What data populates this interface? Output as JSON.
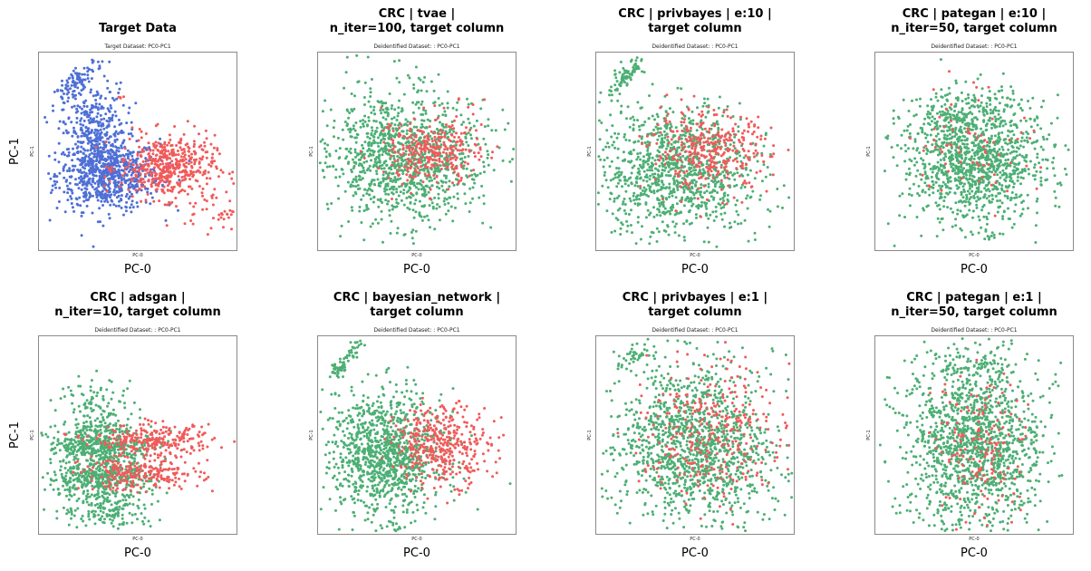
{
  "figure": {
    "row_ylabel": "PC-1"
  },
  "colors": {
    "blue": "#4e6fd6",
    "red": "#f15a5a",
    "green": "#4caf74"
  },
  "chart_data": [
    {
      "type": "scatter",
      "title_lines": [
        "Target Data"
      ],
      "subtitle": "Target Dataset: PC0-PC1",
      "xlabel": "PC-0",
      "ylabel": "PC-1",
      "inner_xlabel": "PC-0",
      "inner_ylabel": "PC-1",
      "series": [
        {
          "color": "blue",
          "clusters": [
            {
              "cx": 0.35,
              "cy": 0.38,
              "sx": 0.13,
              "sy": 0.09,
              "n": 700
            },
            {
              "cx": 0.28,
              "cy": 0.6,
              "sx": 0.08,
              "sy": 0.12,
              "n": 350
            },
            {
              "cx": 0.2,
              "cy": 0.86,
              "sx": 0.06,
              "sy": 0.03,
              "n": 90,
              "tilt": 0.8
            }
          ]
        },
        {
          "color": "red",
          "clusters": [
            {
              "cx": 0.65,
              "cy": 0.42,
              "sx": 0.12,
              "sy": 0.08,
              "n": 480
            },
            {
              "cx": 0.88,
              "cy": 0.2,
              "sx": 0.07,
              "sy": 0.05,
              "n": 40
            },
            {
              "cx": 0.42,
              "cy": 0.77,
              "sx": 0.02,
              "sy": 0.01,
              "n": 4
            }
          ]
        }
      ]
    },
    {
      "type": "scatter",
      "title_lines": [
        "CRC | tvae |",
        "n_iter=100, target column"
      ],
      "subtitle": "Deidentified Dataset: : PC0-PC1",
      "xlabel": "PC-0",
      "inner_xlabel": "PC-0",
      "inner_ylabel": "PC-1",
      "series": [
        {
          "color": "green",
          "clusters": [
            {
              "cx": 0.45,
              "cy": 0.45,
              "sx": 0.2,
              "sy": 0.16,
              "n": 1000
            },
            {
              "cx": 0.3,
              "cy": 0.6,
              "sx": 0.1,
              "sy": 0.15,
              "n": 120
            }
          ]
        },
        {
          "color": "red",
          "clusters": [
            {
              "cx": 0.58,
              "cy": 0.5,
              "sx": 0.13,
              "sy": 0.09,
              "n": 320
            }
          ]
        }
      ]
    },
    {
      "type": "scatter",
      "title_lines": [
        "CRC | privbayes | e:10 |",
        "target column"
      ],
      "subtitle": "Deidentified Dataset: : PC0-PC1",
      "xlabel": "PC-0",
      "inner_xlabel": "PC-0",
      "inner_ylabel": "PC-1",
      "series": [
        {
          "color": "green",
          "clusters": [
            {
              "cx": 0.4,
              "cy": 0.4,
              "sx": 0.2,
              "sy": 0.16,
              "n": 1050
            },
            {
              "cx": 0.15,
              "cy": 0.88,
              "sx": 0.06,
              "sy": 0.03,
              "n": 90,
              "tilt": 0.7
            }
          ]
        },
        {
          "color": "red",
          "clusters": [
            {
              "cx": 0.58,
              "cy": 0.5,
              "sx": 0.15,
              "sy": 0.1,
              "n": 360
            }
          ]
        }
      ]
    },
    {
      "type": "scatter",
      "title_lines": [
        "CRC | pategan | e:10 |",
        "n_iter=50, target column"
      ],
      "subtitle": "Deidentified Dataset: : PC0-PC1",
      "xlabel": "PC-0",
      "inner_xlabel": "PC-0",
      "inner_ylabel": "PC-1",
      "series": [
        {
          "color": "green",
          "clusters": [
            {
              "cx": 0.5,
              "cy": 0.45,
              "sx": 0.18,
              "sy": 0.16,
              "n": 1200
            },
            {
              "cx": 0.45,
              "cy": 0.7,
              "sx": 0.14,
              "sy": 0.05,
              "n": 120
            }
          ]
        },
        {
          "color": "red",
          "clusters": [
            {
              "cx": 0.5,
              "cy": 0.55,
              "sx": 0.15,
              "sy": 0.15,
              "n": 70
            }
          ]
        }
      ]
    },
    {
      "type": "scatter",
      "title_lines": [
        "CRC | adsgan |",
        "n_iter=10, target column"
      ],
      "subtitle": "Deidentified Dataset: : PC0-PC1",
      "xlabel": "PC-0",
      "ylabel": "PC-1",
      "inner_xlabel": "PC-0",
      "inner_ylabel": "PC-1",
      "series": [
        {
          "color": "green",
          "clusters": [
            {
              "cx": 0.32,
              "cy": 0.45,
              "sx": 0.14,
              "sy": 0.05,
              "n": 420
            },
            {
              "cx": 0.3,
              "cy": 0.28,
              "sx": 0.13,
              "sy": 0.05,
              "n": 420
            },
            {
              "cx": 0.3,
              "cy": 0.6,
              "sx": 0.1,
              "sy": 0.1,
              "n": 160
            },
            {
              "cx": 0.35,
              "cy": 0.12,
              "sx": 0.12,
              "sy": 0.05,
              "n": 160
            }
          ]
        },
        {
          "color": "red",
          "clusters": [
            {
              "cx": 0.58,
              "cy": 0.47,
              "sx": 0.15,
              "sy": 0.04,
              "n": 260
            },
            {
              "cx": 0.52,
              "cy": 0.3,
              "sx": 0.15,
              "sy": 0.04,
              "n": 240
            }
          ]
        }
      ]
    },
    {
      "type": "scatter",
      "title_lines": [
        "CRC | bayesian_network |",
        "target column"
      ],
      "subtitle": "Deidentified Dataset: : PC0-PC1",
      "xlabel": "PC-0",
      "inner_xlabel": "PC-0",
      "inner_ylabel": "PC-1",
      "series": [
        {
          "color": "green",
          "clusters": [
            {
              "cx": 0.33,
              "cy": 0.4,
              "sx": 0.15,
              "sy": 0.16,
              "n": 1100
            },
            {
              "cx": 0.1,
              "cy": 0.83,
              "sx": 0.02,
              "sy": 0.02,
              "n": 40
            },
            {
              "cx": 0.18,
              "cy": 0.93,
              "sx": 0.03,
              "sy": 0.02,
              "n": 30,
              "tilt": 0.7
            }
          ]
        },
        {
          "color": "red",
          "clusters": [
            {
              "cx": 0.63,
              "cy": 0.45,
              "sx": 0.12,
              "sy": 0.1,
              "n": 400
            }
          ]
        }
      ]
    },
    {
      "type": "scatter",
      "title_lines": [
        "CRC | privbayes | e:1 |",
        "target column"
      ],
      "subtitle": "Deidentified Dataset: : PC0-PC1",
      "xlabel": "PC-0",
      "inner_xlabel": "PC-0",
      "inner_ylabel": "PC-1",
      "series": [
        {
          "color": "green",
          "clusters": [
            {
              "cx": 0.5,
              "cy": 0.45,
              "sx": 0.2,
              "sy": 0.2,
              "n": 1300
            },
            {
              "cx": 0.2,
              "cy": 0.9,
              "sx": 0.05,
              "sy": 0.03,
              "n": 40,
              "tilt": 0.6
            }
          ]
        },
        {
          "color": "red",
          "clusters": [
            {
              "cx": 0.58,
              "cy": 0.5,
              "sx": 0.18,
              "sy": 0.18,
              "n": 320
            }
          ]
        }
      ]
    },
    {
      "type": "scatter",
      "title_lines": [
        "CRC | pategan | e:1 |",
        "n_iter=50, target column"
      ],
      "subtitle": "Deidentified Dataset: : PC0-PC1",
      "xlabel": "PC-0",
      "inner_xlabel": "PC-0",
      "inner_ylabel": "PC-1",
      "series": [
        {
          "color": "green",
          "clusters": [
            {
              "cx": 0.5,
              "cy": 0.45,
              "sx": 0.17,
              "sy": 0.22,
              "n": 1400
            },
            {
              "cx": 0.5,
              "cy": 0.85,
              "sx": 0.12,
              "sy": 0.05,
              "n": 80
            }
          ]
        },
        {
          "color": "red",
          "clusters": [
            {
              "cx": 0.55,
              "cy": 0.45,
              "sx": 0.12,
              "sy": 0.18,
              "n": 160
            }
          ]
        }
      ]
    }
  ]
}
